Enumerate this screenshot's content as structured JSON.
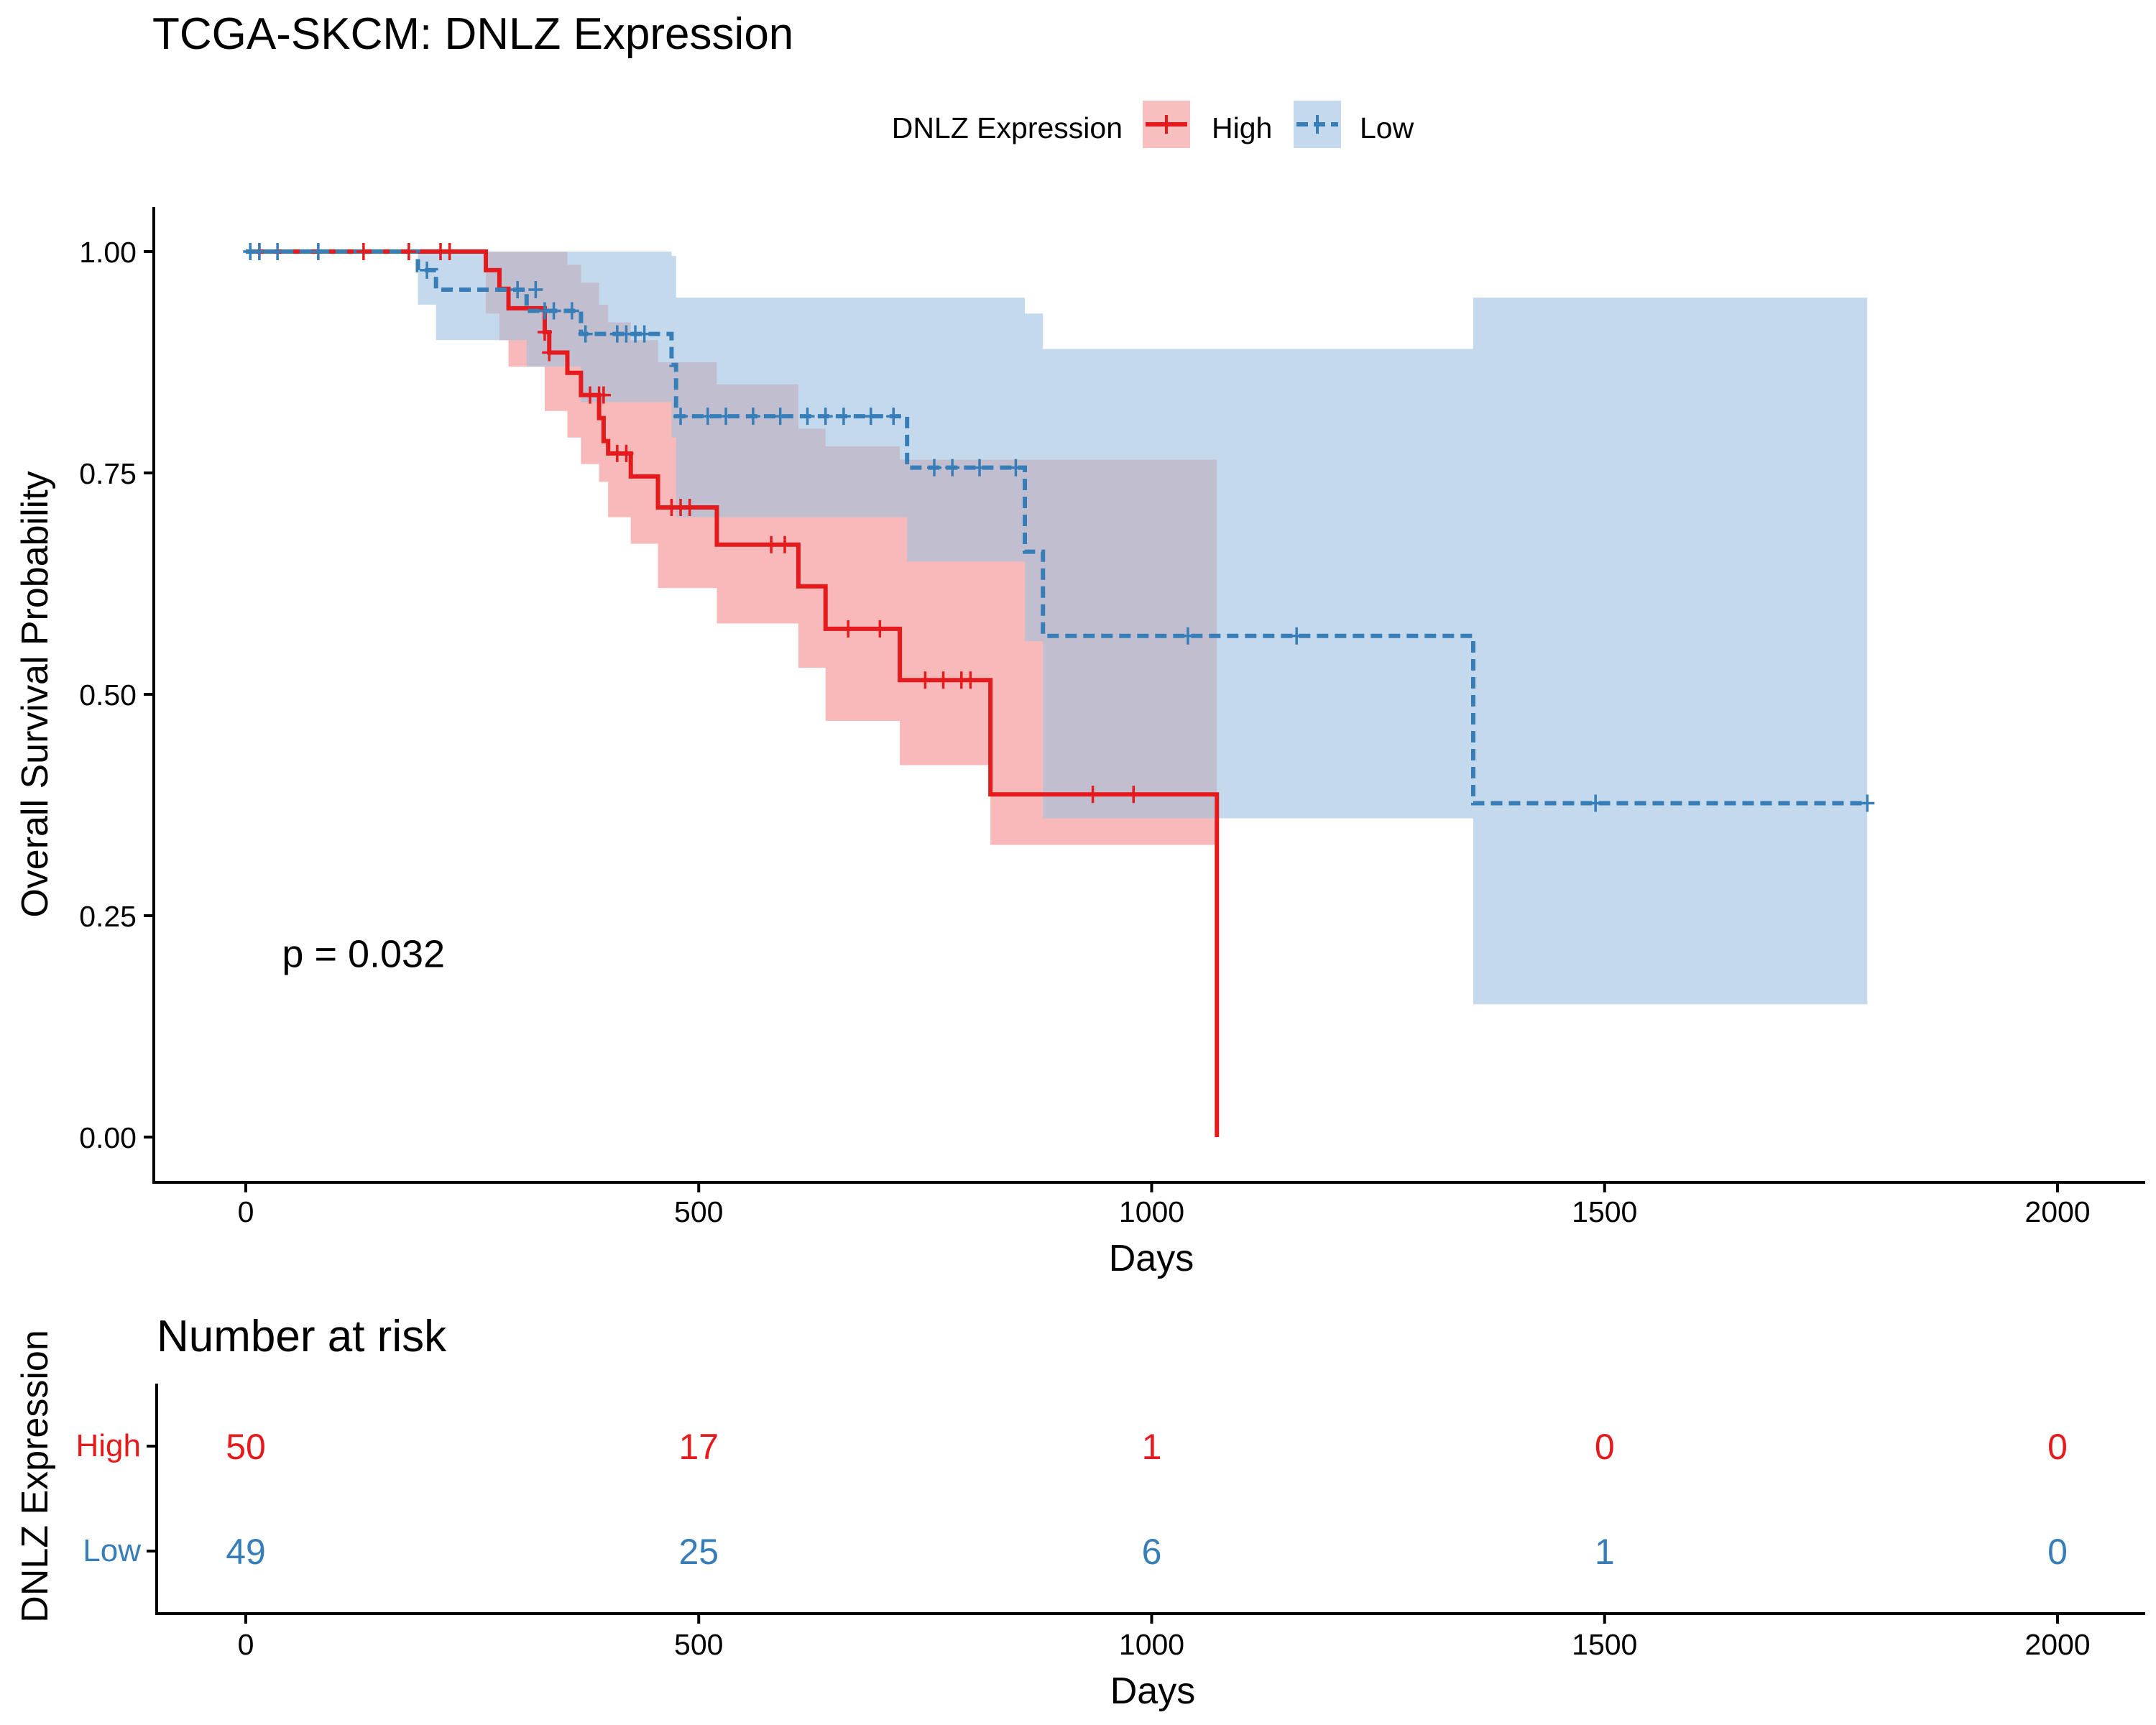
{
  "chart_data": {
    "type": "line",
    "subtype": "kaplan-meier",
    "title": "TCGA-SKCM: DNLZ Expression",
    "xlabel": "Days",
    "ylabel": "Overall Survival Probability",
    "xlim": [
      -100,
      2100
    ],
    "ylim": [
      0,
      1
    ],
    "x_ticks": [
      0,
      500,
      1000,
      1500,
      2000
    ],
    "y_ticks": [
      0,
      0.25,
      0.5,
      0.75,
      1
    ],
    "y_tick_labels": [
      "0.00",
      "0.25",
      "0.50",
      "0.75",
      "1.00"
    ],
    "grid": false,
    "legend": {
      "title": "DNLZ Expression",
      "position": "top"
    },
    "pvalue_text": "p = 0.032",
    "pvalue_pos": [
      40,
      0.2
    ],
    "series": [
      {
        "name": "High",
        "color": "#E41A1C",
        "band_color": "#F08080",
        "dash": "solid",
        "steps": [
          [
            0,
            1
          ],
          [
            265,
            0.979
          ],
          [
            280,
            0.958
          ],
          [
            290,
            0.936
          ],
          [
            330,
            0.909
          ],
          [
            335,
            0.886
          ],
          [
            355,
            0.863
          ],
          [
            370,
            0.838
          ],
          [
            390,
            0.812
          ],
          [
            395,
            0.786
          ],
          [
            400,
            0.772
          ],
          [
            425,
            0.746
          ],
          [
            455,
            0.711
          ],
          [
            520,
            0.669
          ],
          [
            610,
            0.622
          ],
          [
            640,
            0.574
          ],
          [
            722,
            0.516
          ],
          [
            822,
            0.387
          ],
          [
            1072,
            0
          ]
        ],
        "upper": [
          [
            0,
            1
          ],
          [
            265,
            1
          ],
          [
            280,
            1
          ],
          [
            290,
            1
          ],
          [
            330,
            1
          ],
          [
            355,
            0.985
          ],
          [
            370,
            0.965
          ],
          [
            390,
            0.94
          ],
          [
            400,
            0.92
          ],
          [
            425,
            0.9
          ],
          [
            455,
            0.875
          ],
          [
            520,
            0.85
          ],
          [
            610,
            0.8
          ],
          [
            640,
            0.78
          ],
          [
            722,
            0.765
          ],
          [
            822,
            0.765
          ],
          [
            1072,
            0.765
          ]
        ],
        "lower": [
          [
            0,
            1
          ],
          [
            265,
            0.93
          ],
          [
            280,
            0.9
          ],
          [
            290,
            0.87
          ],
          [
            330,
            0.82
          ],
          [
            355,
            0.79
          ],
          [
            370,
            0.76
          ],
          [
            390,
            0.74
          ],
          [
            400,
            0.7
          ],
          [
            425,
            0.67
          ],
          [
            455,
            0.62
          ],
          [
            520,
            0.58
          ],
          [
            610,
            0.53
          ],
          [
            640,
            0.47
          ],
          [
            722,
            0.42
          ],
          [
            822,
            0.33
          ],
          [
            1072,
            0.2
          ]
        ],
        "censors": [
          [
            15,
            1
          ],
          [
            130,
            1
          ],
          [
            180,
            1
          ],
          [
            215,
            1
          ],
          [
            225,
            1
          ],
          [
            330,
            0.909
          ],
          [
            335,
            0.886
          ],
          [
            380,
            0.838
          ],
          [
            390,
            0.838
          ],
          [
            395,
            0.838
          ],
          [
            410,
            0.772
          ],
          [
            420,
            0.772
          ],
          [
            470,
            0.711
          ],
          [
            480,
            0.711
          ],
          [
            490,
            0.711
          ],
          [
            580,
            0.669
          ],
          [
            595,
            0.669
          ],
          [
            665,
            0.574
          ],
          [
            700,
            0.574
          ],
          [
            750,
            0.516
          ],
          [
            770,
            0.516
          ],
          [
            790,
            0.516
          ],
          [
            800,
            0.516
          ],
          [
            935,
            0.387
          ],
          [
            980,
            0.387
          ]
        ]
      },
      {
        "name": "Low",
        "color": "#377EB8",
        "band_color": "#9DC1E0",
        "dash": "dashed",
        "steps": [
          [
            0,
            1
          ],
          [
            190,
            0.979
          ],
          [
            210,
            0.957
          ],
          [
            310,
            0.933
          ],
          [
            370,
            0.907
          ],
          [
            470,
            0.872
          ],
          [
            475,
            0.814
          ],
          [
            730,
            0.756
          ],
          [
            860,
            0.661
          ],
          [
            880,
            0.566
          ],
          [
            1355,
            0.377
          ],
          [
            1790,
            0.377
          ]
        ],
        "upper": [
          [
            0,
            1
          ],
          [
            190,
            1
          ],
          [
            210,
            1
          ],
          [
            310,
            1
          ],
          [
            370,
            1
          ],
          [
            470,
            0.995
          ],
          [
            475,
            0.948
          ],
          [
            730,
            0.948
          ],
          [
            860,
            0.93
          ],
          [
            880,
            0.89
          ],
          [
            1355,
            0.948
          ],
          [
            1790,
            0.948
          ]
        ],
        "lower": [
          [
            0,
            1
          ],
          [
            190,
            0.94
          ],
          [
            210,
            0.9
          ],
          [
            310,
            0.87
          ],
          [
            370,
            0.83
          ],
          [
            470,
            0.79
          ],
          [
            475,
            0.7
          ],
          [
            730,
            0.65
          ],
          [
            860,
            0.56
          ],
          [
            880,
            0.36
          ],
          [
            1355,
            0.15
          ],
          [
            1790,
            0.15
          ]
        ],
        "censors": [
          [
            5,
            1
          ],
          [
            15,
            1
          ],
          [
            35,
            1
          ],
          [
            80,
            1
          ],
          [
            200,
            0.979
          ],
          [
            300,
            0.957
          ],
          [
            320,
            0.957
          ],
          [
            330,
            0.933
          ],
          [
            340,
            0.933
          ],
          [
            360,
            0.933
          ],
          [
            375,
            0.907
          ],
          [
            410,
            0.907
          ],
          [
            420,
            0.907
          ],
          [
            430,
            0.907
          ],
          [
            440,
            0.907
          ],
          [
            480,
            0.814
          ],
          [
            510,
            0.814
          ],
          [
            530,
            0.814
          ],
          [
            560,
            0.814
          ],
          [
            590,
            0.814
          ],
          [
            620,
            0.814
          ],
          [
            640,
            0.814
          ],
          [
            660,
            0.814
          ],
          [
            690,
            0.814
          ],
          [
            715,
            0.814
          ],
          [
            760,
            0.756
          ],
          [
            780,
            0.756
          ],
          [
            810,
            0.756
          ],
          [
            850,
            0.756
          ],
          [
            1040,
            0.566
          ],
          [
            1160,
            0.566
          ],
          [
            1490,
            0.377
          ],
          [
            1790,
            0.377
          ]
        ]
      }
    ],
    "risk_table": {
      "title": "Number at risk",
      "ylabel": "DNLZ Expression",
      "xlabel": "Days",
      "times": [
        0,
        500,
        1000,
        1500,
        2000
      ],
      "rows": [
        {
          "name": "High",
          "color": "#E41A1C",
          "values": [
            50,
            17,
            1,
            0,
            0
          ]
        },
        {
          "name": "Low",
          "color": "#377EB8",
          "values": [
            49,
            25,
            6,
            1,
            0
          ]
        }
      ]
    }
  }
}
